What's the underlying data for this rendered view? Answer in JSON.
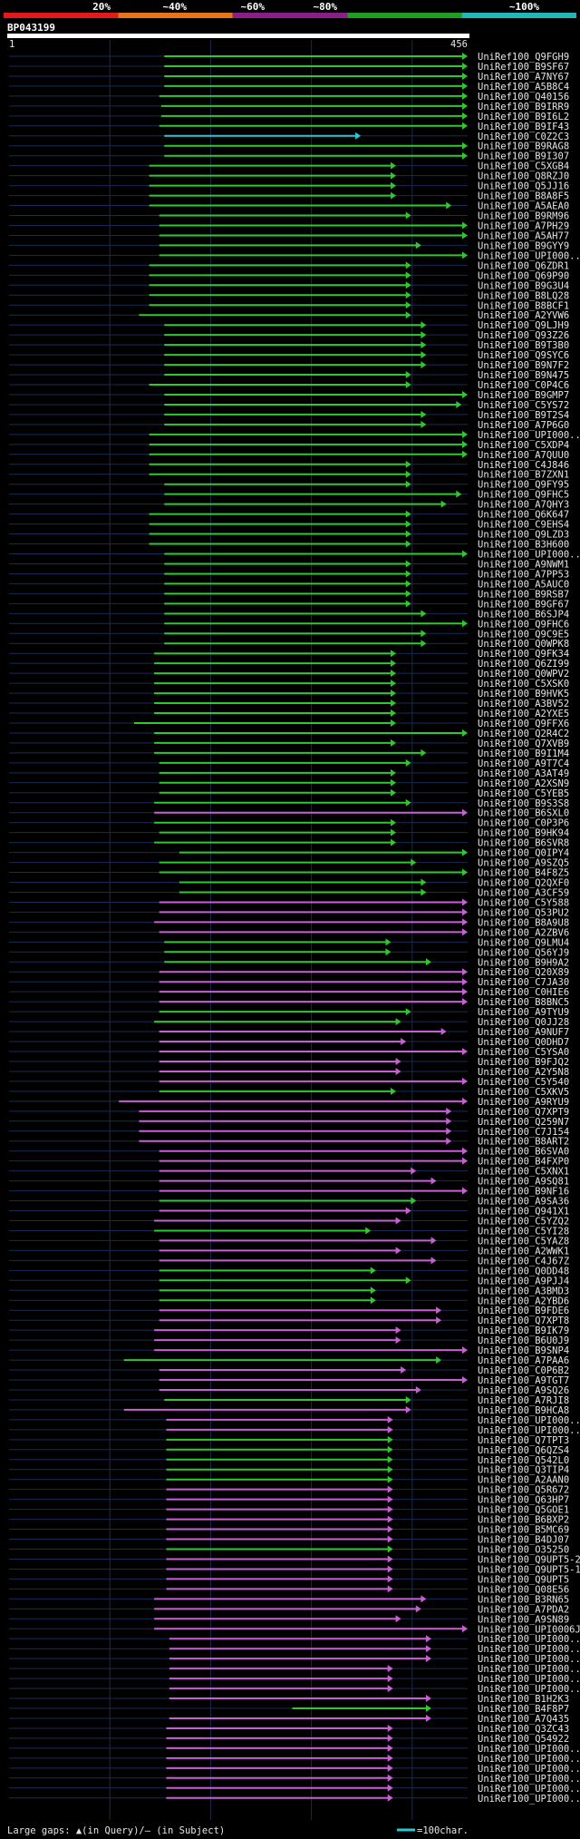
{
  "chart_data": {
    "type": "alignment-overview",
    "query_name": "BP043199",
    "axis_start": "1",
    "axis_end": "456",
    "query_length": 456,
    "identity_scale": [
      {
        "label": "20%",
        "color": "#e31a1c"
      },
      {
        "label": "~40%",
        "color": "#e5741b"
      },
      {
        "label": "~60%",
        "color": "#8a1f8a"
      },
      {
        "label": "~80%",
        "color": "#1f9e1f"
      },
      {
        "label": "~100%",
        "color": "#1fb7b7"
      }
    ],
    "colors": {
      "green": "#2fc82f",
      "magenta": "#c85fd6",
      "cyan": "#28c8d8"
    },
    "footer_left": "Large gaps: ▲(in Query)/— (in Subject)",
    "footer_right": "=100char.",
    "hits": [
      {
        "id": "UniRef100_Q9FGH9",
        "s": 155,
        "e": 456,
        "c": "g"
      },
      {
        "id": "UniRef100_B9SF67",
        "s": 155,
        "e": 456,
        "c": "g"
      },
      {
        "id": "UniRef100_A7NY67",
        "s": 155,
        "e": 456,
        "c": "g"
      },
      {
        "id": "UniRef100_A5B8C4",
        "s": 155,
        "e": 456,
        "c": "g"
      },
      {
        "id": "UniRef100_Q40156",
        "s": 150,
        "e": 456,
        "c": "g"
      },
      {
        "id": "UniRef100_B9IRR9",
        "s": 152,
        "e": 456,
        "c": "g"
      },
      {
        "id": "UniRef100_B9I6L2",
        "s": 152,
        "e": 456,
        "c": "g"
      },
      {
        "id": "UniRef100_B9IF43",
        "s": 150,
        "e": 456,
        "c": "g"
      },
      {
        "id": "UniRef100_C0Z2C3",
        "s": 155,
        "e": 350,
        "c": "c"
      },
      {
        "id": "UniRef100_B9RAG8",
        "s": 155,
        "e": 456,
        "c": "g"
      },
      {
        "id": "UniRef100_B9I307",
        "s": 155,
        "e": 456,
        "c": "g"
      },
      {
        "id": "UniRef100_C5XGB4",
        "s": 140,
        "e": 385,
        "c": "g"
      },
      {
        "id": "UniRef100_Q8RZJ0",
        "s": 140,
        "e": 385,
        "c": "g"
      },
      {
        "id": "UniRef100_Q5JJ16",
        "s": 140,
        "e": 385,
        "c": "g"
      },
      {
        "id": "UniRef100_B8A8F5",
        "s": 140,
        "e": 385,
        "c": "g"
      },
      {
        "id": "UniRef100_A5AEA0",
        "s": 140,
        "e": 440,
        "c": "g"
      },
      {
        "id": "UniRef100_B9RM96",
        "s": 150,
        "e": 400,
        "c": "g"
      },
      {
        "id": "UniRef100_A7PH29",
        "s": 150,
        "e": 456,
        "c": "g"
      },
      {
        "id": "UniRef100_A5AH77",
        "s": 150,
        "e": 456,
        "c": "g"
      },
      {
        "id": "UniRef100_B9GYY9",
        "s": 150,
        "e": 410,
        "c": "g"
      },
      {
        "id": "UniRef100_UPI000...",
        "s": 150,
        "e": 456,
        "c": "g"
      },
      {
        "id": "UniRef100_Q6ZDR1",
        "s": 140,
        "e": 400,
        "c": "g"
      },
      {
        "id": "UniRef100_Q69P90",
        "s": 140,
        "e": 400,
        "c": "g"
      },
      {
        "id": "UniRef100_B9G3U4",
        "s": 140,
        "e": 400,
        "c": "g"
      },
      {
        "id": "UniRef100_B8LQ28",
        "s": 140,
        "e": 400,
        "c": "g"
      },
      {
        "id": "UniRef100_B8BCF1",
        "s": 140,
        "e": 400,
        "c": "g"
      },
      {
        "id": "UniRef100_A2YVW6",
        "s": 130,
        "e": 400,
        "c": "g"
      },
      {
        "id": "UniRef100_Q9LJH9",
        "s": 155,
        "e": 415,
        "c": "g"
      },
      {
        "id": "UniRef100_Q93Z26",
        "s": 155,
        "e": 415,
        "c": "g"
      },
      {
        "id": "UniRef100_B9T3B0",
        "s": 155,
        "e": 415,
        "c": "g"
      },
      {
        "id": "UniRef100_Q9SYC6",
        "s": 155,
        "e": 415,
        "c": "g"
      },
      {
        "id": "UniRef100_B9N7F2",
        "s": 155,
        "e": 415,
        "c": "g"
      },
      {
        "id": "UniRef100_B9N475",
        "s": 155,
        "e": 400,
        "c": "g"
      },
      {
        "id": "UniRef100_C0P4C6",
        "s": 140,
        "e": 400,
        "c": "g"
      },
      {
        "id": "UniRef100_B9GMP7",
        "s": 155,
        "e": 456,
        "c": "g"
      },
      {
        "id": "UniRef100_C5YS72",
        "s": 155,
        "e": 450,
        "c": "g"
      },
      {
        "id": "UniRef100_B9T2S4",
        "s": 155,
        "e": 415,
        "c": "g"
      },
      {
        "id": "UniRef100_A7P6G0",
        "s": 155,
        "e": 415,
        "c": "g"
      },
      {
        "id": "UniRef100_UPI000...",
        "s": 140,
        "e": 456,
        "c": "g"
      },
      {
        "id": "UniRef100_C5XDP4",
        "s": 140,
        "e": 456,
        "c": "g"
      },
      {
        "id": "UniRef100_A7QUU0",
        "s": 140,
        "e": 456,
        "c": "g"
      },
      {
        "id": "UniRef100_C4J846",
        "s": 140,
        "e": 400,
        "c": "g"
      },
      {
        "id": "UniRef100_B7ZXN1",
        "s": 140,
        "e": 400,
        "c": "g"
      },
      {
        "id": "UniRef100_Q9FY95",
        "s": 155,
        "e": 400,
        "c": "g"
      },
      {
        "id": "UniRef100_Q9FHC5",
        "s": 155,
        "e": 450,
        "c": "g"
      },
      {
        "id": "UniRef100_A7QHY3",
        "s": 155,
        "e": 435,
        "c": "g"
      },
      {
        "id": "UniRef100_Q6K647",
        "s": 140,
        "e": 400,
        "c": "g"
      },
      {
        "id": "UniRef100_C9EHS4",
        "s": 140,
        "e": 400,
        "c": "g"
      },
      {
        "id": "UniRef100_Q9LZD3",
        "s": 140,
        "e": 400,
        "c": "g"
      },
      {
        "id": "UniRef100_B3H600",
        "s": 140,
        "e": 400,
        "c": "g"
      },
      {
        "id": "UniRef100_UPI000...",
        "s": 155,
        "e": 456,
        "c": "g"
      },
      {
        "id": "UniRef100_A9NWM1",
        "s": 155,
        "e": 400,
        "c": "g"
      },
      {
        "id": "UniRef100_A7PP53",
        "s": 155,
        "e": 400,
        "c": "g"
      },
      {
        "id": "UniRef100_A5AUC0",
        "s": 155,
        "e": 400,
        "c": "g"
      },
      {
        "id": "UniRef100_B9RSB7",
        "s": 155,
        "e": 400,
        "c": "g"
      },
      {
        "id": "UniRef100_B9GF67",
        "s": 155,
        "e": 400,
        "c": "g"
      },
      {
        "id": "UniRef100_B6SJP4",
        "s": 155,
        "e": 415,
        "c": "g"
      },
      {
        "id": "UniRef100_Q9FHC6",
        "s": 155,
        "e": 456,
        "c": "g"
      },
      {
        "id": "UniRef100_Q9C9E5",
        "s": 155,
        "e": 415,
        "c": "g"
      },
      {
        "id": "UniRef100_Q0WPK8",
        "s": 155,
        "e": 415,
        "c": "g"
      },
      {
        "id": "UniRef100_Q9FK34",
        "s": 145,
        "e": 385,
        "c": "g"
      },
      {
        "id": "UniRef100_Q6ZI99",
        "s": 145,
        "e": 385,
        "c": "g"
      },
      {
        "id": "UniRef100_Q0WPV2",
        "s": 145,
        "e": 385,
        "c": "g"
      },
      {
        "id": "UniRef100_C5XSK0",
        "s": 145,
        "e": 385,
        "c": "g"
      },
      {
        "id": "UniRef100_B9HVK5",
        "s": 145,
        "e": 385,
        "c": "g"
      },
      {
        "id": "UniRef100_A3BV52",
        "s": 145,
        "e": 385,
        "c": "g"
      },
      {
        "id": "UniRef100_A2YXE5",
        "s": 145,
        "e": 385,
        "c": "g"
      },
      {
        "id": "UniRef100_Q9FFX6",
        "s": 125,
        "e": 385,
        "c": "g"
      },
      {
        "id": "UniRef100_Q2R4C2",
        "s": 145,
        "e": 456,
        "c": "g"
      },
      {
        "id": "UniRef100_Q7XVB9",
        "s": 145,
        "e": 385,
        "c": "g"
      },
      {
        "id": "UniRef100_B9I1M4",
        "s": 145,
        "e": 415,
        "c": "g"
      },
      {
        "id": "UniRef100_A9T7C4",
        "s": 150,
        "e": 400,
        "c": "g"
      },
      {
        "id": "UniRef100_A3AT49",
        "s": 150,
        "e": 385,
        "c": "g"
      },
      {
        "id": "UniRef100_A2XSN9",
        "s": 150,
        "e": 385,
        "c": "g"
      },
      {
        "id": "UniRef100_C5YEB5",
        "s": 150,
        "e": 385,
        "c": "g"
      },
      {
        "id": "UniRef100_B9S3S8",
        "s": 145,
        "e": 400,
        "c": "g"
      },
      {
        "id": "UniRef100_B6SXL0",
        "s": 145,
        "e": 456,
        "c": "m"
      },
      {
        "id": "UniRef100_C0P3P6",
        "s": 145,
        "e": 385,
        "c": "g"
      },
      {
        "id": "UniRef100_B9HK94",
        "s": 150,
        "e": 385,
        "c": "g"
      },
      {
        "id": "UniRef100_B6SVR8",
        "s": 145,
        "e": 385,
        "c": "g"
      },
      {
        "id": "UniRef100_Q0IPY4",
        "s": 170,
        "e": 456,
        "c": "g"
      },
      {
        "id": "UniRef100_A9SZQ5",
        "s": 150,
        "e": 405,
        "c": "g"
      },
      {
        "id": "UniRef100_B4F8Z5",
        "s": 150,
        "e": 456,
        "c": "g"
      },
      {
        "id": "UniRef100_Q2QXF0",
        "s": 170,
        "e": 415,
        "c": "g"
      },
      {
        "id": "UniRef100_A3CF59",
        "s": 170,
        "e": 415,
        "c": "g"
      },
      {
        "id": "UniRef100_C5Y588",
        "s": 150,
        "e": 456,
        "c": "m"
      },
      {
        "id": "UniRef100_Q53PU2",
        "s": 150,
        "e": 456,
        "c": "m"
      },
      {
        "id": "UniRef100_B8A9U8",
        "s": 145,
        "e": 456,
        "c": "m"
      },
      {
        "id": "UniRef100_A2ZBV6",
        "s": 150,
        "e": 456,
        "c": "m"
      },
      {
        "id": "UniRef100_Q9LMU4",
        "s": 155,
        "e": 380,
        "c": "g"
      },
      {
        "id": "UniRef100_Q56YJ9",
        "s": 155,
        "e": 380,
        "c": "g"
      },
      {
        "id": "UniRef100_B9H9A2",
        "s": 155,
        "e": 420,
        "c": "g"
      },
      {
        "id": "UniRef100_Q20X89",
        "s": 150,
        "e": 456,
        "c": "m"
      },
      {
        "id": "UniRef100_C7JA30",
        "s": 150,
        "e": 456,
        "c": "m"
      },
      {
        "id": "UniRef100_C0HIE6",
        "s": 150,
        "e": 456,
        "c": "m"
      },
      {
        "id": "UniRef100_B8BNC5",
        "s": 150,
        "e": 456,
        "c": "m"
      },
      {
        "id": "UniRef100_A9TYU9",
        "s": 150,
        "e": 400,
        "c": "g"
      },
      {
        "id": "UniRef100_Q0JJ28",
        "s": 145,
        "e": 390,
        "c": "g"
      },
      {
        "id": "UniRef100_A9NUF7",
        "s": 150,
        "e": 435,
        "c": "m"
      },
      {
        "id": "UniRef100_Q0DHD7",
        "s": 150,
        "e": 395,
        "c": "m"
      },
      {
        "id": "UniRef100_C5YSA0",
        "s": 150,
        "e": 456,
        "c": "m"
      },
      {
        "id": "UniRef100_B9FJQ2",
        "s": 150,
        "e": 390,
        "c": "m"
      },
      {
        "id": "UniRef100_A2Y5N8",
        "s": 150,
        "e": 390,
        "c": "m"
      },
      {
        "id": "UniRef100_C5Y540",
        "s": 150,
        "e": 456,
        "c": "m"
      },
      {
        "id": "UniRef100_C5XKV5",
        "s": 150,
        "e": 385,
        "c": "g"
      },
      {
        "id": "UniRef100_A9RYU9",
        "s": 110,
        "e": 456,
        "c": "m"
      },
      {
        "id": "UniRef100_Q7XPT9",
        "s": 130,
        "e": 440,
        "c": "m"
      },
      {
        "id": "UniRef100_Q259N7",
        "s": 130,
        "e": 440,
        "c": "m"
      },
      {
        "id": "UniRef100_C7J154",
        "s": 130,
        "e": 440,
        "c": "m"
      },
      {
        "id": "UniRef100_B8ART2",
        "s": 130,
        "e": 440,
        "c": "m"
      },
      {
        "id": "UniRef100_B6SVA0",
        "s": 150,
        "e": 456,
        "c": "m"
      },
      {
        "id": "UniRef100_B4FXP0",
        "s": 150,
        "e": 456,
        "c": "m"
      },
      {
        "id": "UniRef100_C5XNX1",
        "s": 150,
        "e": 405,
        "c": "m"
      },
      {
        "id": "UniRef100_A9SQ81",
        "s": 150,
        "e": 425,
        "c": "m"
      },
      {
        "id": "UniRef100_B9NF16",
        "s": 150,
        "e": 456,
        "c": "m"
      },
      {
        "id": "UniRef100_A9SA36",
        "s": 150,
        "e": 405,
        "c": "g"
      },
      {
        "id": "UniRef100_Q941X1",
        "s": 150,
        "e": 400,
        "c": "m"
      },
      {
        "id": "UniRef100_C5YZQ2",
        "s": 145,
        "e": 390,
        "c": "m"
      },
      {
        "id": "UniRef100_C5YI28",
        "s": 145,
        "e": 360,
        "c": "g"
      },
      {
        "id": "UniRef100_C5YAZ8",
        "s": 150,
        "e": 425,
        "c": "m"
      },
      {
        "id": "UniRef100_A2WWK1",
        "s": 150,
        "e": 390,
        "c": "m"
      },
      {
        "id": "UniRef100_C4J67Z",
        "s": 150,
        "e": 425,
        "c": "m"
      },
      {
        "id": "UniRef100_Q0DD48",
        "s": 150,
        "e": 365,
        "c": "g"
      },
      {
        "id": "UniRef100_A9PJJ4",
        "s": 150,
        "e": 400,
        "c": "g"
      },
      {
        "id": "UniRef100_A3BMD3",
        "s": 150,
        "e": 365,
        "c": "g"
      },
      {
        "id": "UniRef100_A2YBD6",
        "s": 150,
        "e": 365,
        "c": "g"
      },
      {
        "id": "UniRef100_B9FDE6",
        "s": 150,
        "e": 430,
        "c": "m"
      },
      {
        "id": "UniRef100_Q7XPT8",
        "s": 150,
        "e": 430,
        "c": "m"
      },
      {
        "id": "UniRef100_B9IK79",
        "s": 145,
        "e": 390,
        "c": "m"
      },
      {
        "id": "UniRef100_B6U0J9",
        "s": 145,
        "e": 390,
        "c": "m"
      },
      {
        "id": "UniRef100_B9SNP4",
        "s": 145,
        "e": 456,
        "c": "m"
      },
      {
        "id": "UniRef100_A7PAA6",
        "s": 115,
        "e": 430,
        "c": "g"
      },
      {
        "id": "UniRef100_C0P6B2",
        "s": 150,
        "e": 395,
        "c": "m"
      },
      {
        "id": "UniRef100_A9TGT7",
        "s": 150,
        "e": 456,
        "c": "m"
      },
      {
        "id": "UniRef100_A9SQ26",
        "s": 150,
        "e": 410,
        "c": "m"
      },
      {
        "id": "UniRef100_A7RJI8",
        "s": 155,
        "e": 400,
        "c": "g"
      },
      {
        "id": "UniRef100_B9HCA8",
        "s": 115,
        "e": 400,
        "c": "m"
      },
      {
        "id": "UniRef100_UPI000...",
        "s": 157,
        "e": 382,
        "c": "m"
      },
      {
        "id": "UniRef100_UPI000...",
        "s": 157,
        "e": 382,
        "c": "m"
      },
      {
        "id": "UniRef100_Q7TPT3",
        "s": 157,
        "e": 382,
        "c": "g"
      },
      {
        "id": "UniRef100_Q6QZS4",
        "s": 157,
        "e": 382,
        "c": "g"
      },
      {
        "id": "UniRef100_Q542L0",
        "s": 157,
        "e": 382,
        "c": "g"
      },
      {
        "id": "UniRef100_Q3TIP4",
        "s": 157,
        "e": 382,
        "c": "g"
      },
      {
        "id": "UniRef100_A2AAN0",
        "s": 157,
        "e": 382,
        "c": "g"
      },
      {
        "id": "UniRef100_Q5R672",
        "s": 157,
        "e": 382,
        "c": "m"
      },
      {
        "id": "UniRef100_Q63HP7",
        "s": 157,
        "e": 382,
        "c": "m"
      },
      {
        "id": "UniRef100_Q5GOE1",
        "s": 157,
        "e": 382,
        "c": "m"
      },
      {
        "id": "UniRef100_B6BXP2",
        "s": 157,
        "e": 382,
        "c": "m"
      },
      {
        "id": "UniRef100_B5MC69",
        "s": 157,
        "e": 382,
        "c": "m"
      },
      {
        "id": "UniRef100_B4DJ07",
        "s": 157,
        "e": 382,
        "c": "m"
      },
      {
        "id": "UniRef100_O35250",
        "s": 157,
        "e": 382,
        "c": "g"
      },
      {
        "id": "UniRef100_Q9UPT5-2",
        "s": 157,
        "e": 382,
        "c": "m"
      },
      {
        "id": "UniRef100_Q9UPT5-1",
        "s": 157,
        "e": 382,
        "c": "m"
      },
      {
        "id": "UniRef100_Q9UPT5",
        "s": 157,
        "e": 382,
        "c": "m"
      },
      {
        "id": "UniRef100_Q08E56",
        "s": 157,
        "e": 382,
        "c": "m"
      },
      {
        "id": "UniRef100_B3RN65",
        "s": 145,
        "e": 415,
        "c": "m"
      },
      {
        "id": "UniRef100_A7PDA2",
        "s": 145,
        "e": 410,
        "c": "m"
      },
      {
        "id": "UniRef100_A9SN89",
        "s": 145,
        "e": 390,
        "c": "m"
      },
      {
        "id": "UniRef100_UPI0006J8",
        "s": 145,
        "e": 456,
        "c": "m"
      },
      {
        "id": "UniRef100_UPI000...",
        "s": 160,
        "e": 420,
        "c": "m"
      },
      {
        "id": "UniRef100_UPI000...",
        "s": 160,
        "e": 420,
        "c": "m"
      },
      {
        "id": "UniRef100_UPI000...",
        "s": 160,
        "e": 420,
        "c": "m"
      },
      {
        "id": "UniRef100_UPI000...",
        "s": 160,
        "e": 382,
        "c": "m"
      },
      {
        "id": "UniRef100_UPI000...",
        "s": 160,
        "e": 382,
        "c": "m"
      },
      {
        "id": "UniRef100_UPI000...",
        "s": 160,
        "e": 382,
        "c": "m"
      },
      {
        "id": "UniRef100_B1H2K3",
        "s": 160,
        "e": 420,
        "c": "m"
      },
      {
        "id": "UniRef100_B4F8P7",
        "s": 282,
        "e": 420,
        "c": "g"
      },
      {
        "id": "UniRef100_A7Q435",
        "s": 160,
        "e": 420,
        "c": "m"
      },
      {
        "id": "UniRef100_Q3ZC43",
        "s": 157,
        "e": 382,
        "c": "m"
      },
      {
        "id": "UniRef100_Q54922",
        "s": 157,
        "e": 382,
        "c": "m"
      },
      {
        "id": "UniRef100_UPI000...",
        "s": 157,
        "e": 382,
        "c": "m"
      },
      {
        "id": "UniRef100_UPI000...",
        "s": 157,
        "e": 382,
        "c": "m"
      },
      {
        "id": "UniRef100_UPI000...",
        "s": 157,
        "e": 382,
        "c": "m"
      },
      {
        "id": "UniRef100_UPI000...",
        "s": 157,
        "e": 382,
        "c": "m"
      },
      {
        "id": "UniRef100_UPI000...",
        "s": 157,
        "e": 382,
        "c": "m"
      },
      {
        "id": "UniRef100_UPI000...",
        "s": 157,
        "e": 382,
        "c": "m"
      }
    ]
  }
}
